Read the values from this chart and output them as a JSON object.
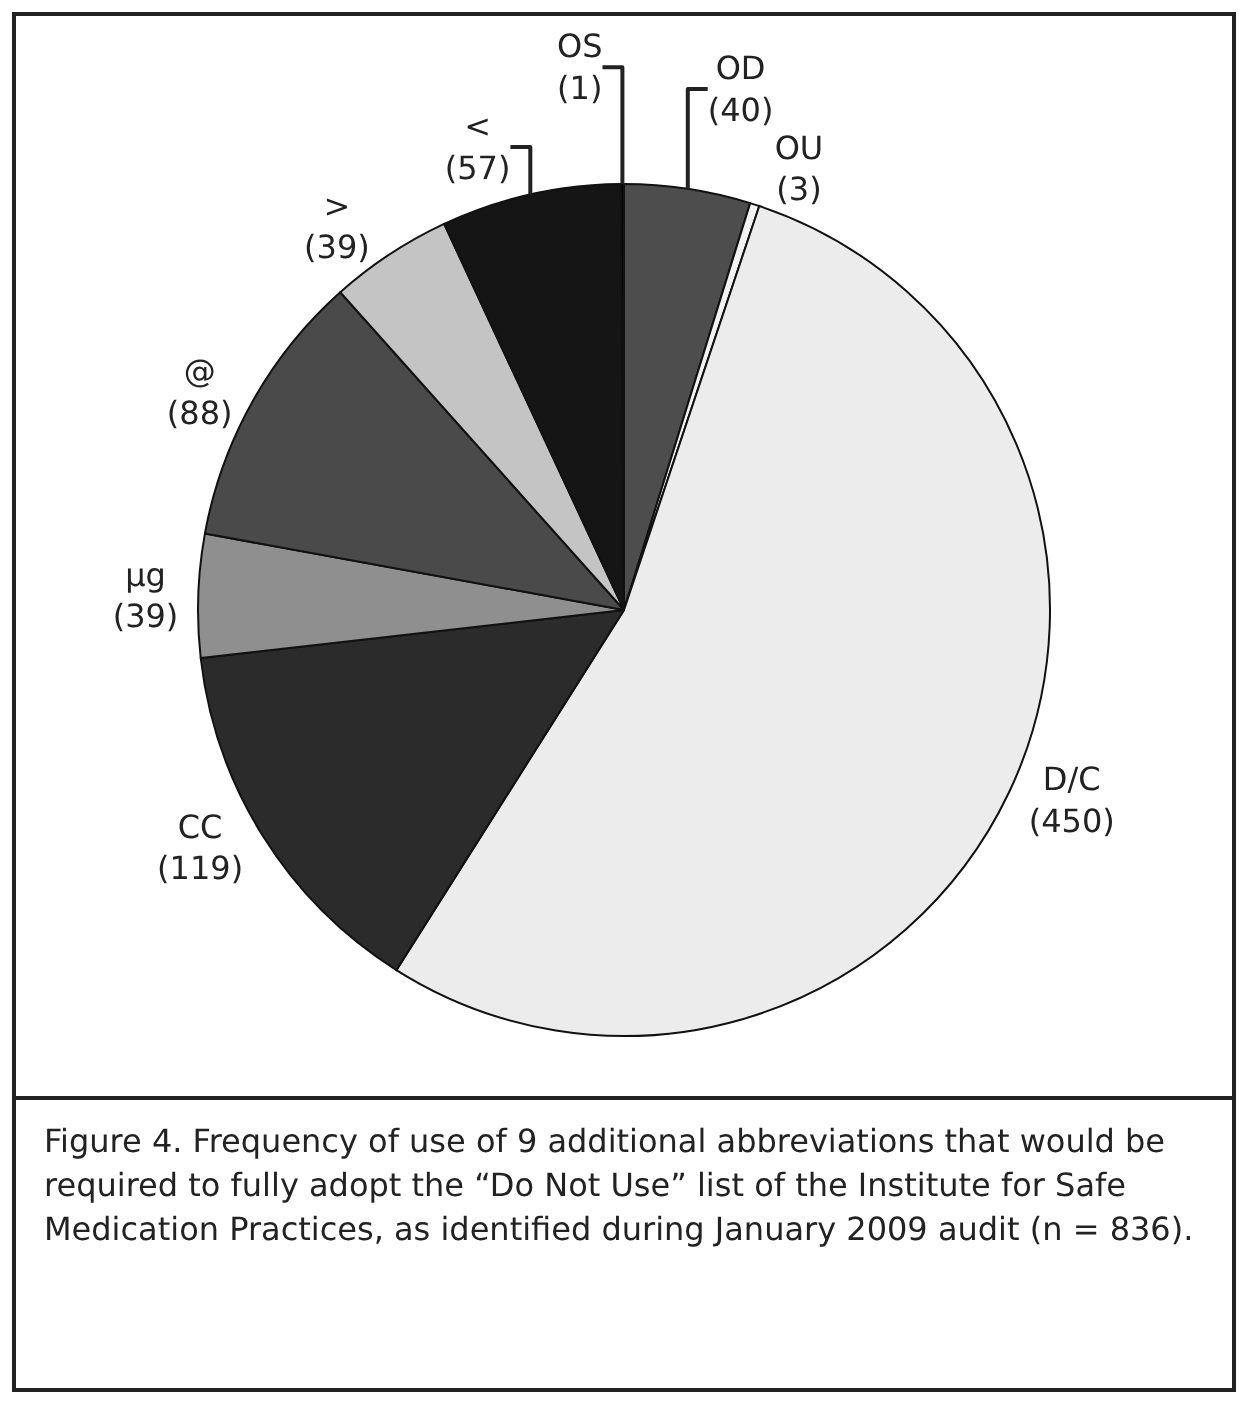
{
  "chart_data": {
    "type": "pie",
    "categories": [
      "OD",
      "OU",
      "D/C",
      "CC",
      "μg",
      "@",
      ">",
      "<",
      "OS"
    ],
    "values": [
      40,
      3,
      450,
      119,
      39,
      88,
      39,
      57,
      1
    ],
    "colors": [
      "#4d4d4d",
      "#f2f2f2",
      "#ececec",
      "#2b2b2b",
      "#8f8f8f",
      "#4a4a4a",
      "#c4c4c4",
      "#151515",
      "#000000"
    ],
    "value_labels": [
      "(40)",
      "(3)",
      "(450)",
      "(119)",
      "(39)",
      "(88)",
      "(39)",
      "(57)",
      "(1)"
    ],
    "annotations": [
      "Figure 4. Frequency of use of 9 additional abbreviations that would be required to fully adopt the “Do Not Use” list of the Institute for Safe Medication Practices, as identified during January 2009 audit (n = 836)."
    ]
  }
}
